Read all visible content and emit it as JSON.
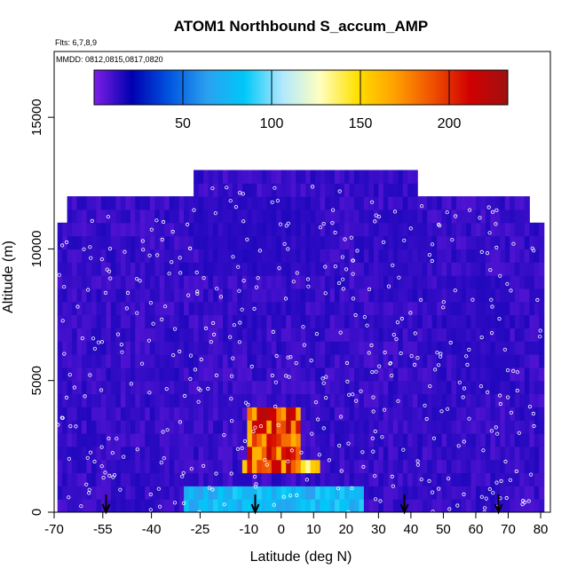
{
  "chart_data": {
    "type": "heatmap",
    "title": "ATOM1 Northbound S_accum_AMP",
    "flights_note": "Flts: 6,7,8,9",
    "dates_note": "MMDD: 0812,0815,0817,0820",
    "xlabel": "Latitude (deg N)",
    "ylabel": "Altitude (m)",
    "xlim": [
      -70,
      83
    ],
    "ylim": [
      0,
      17500
    ],
    "x_ticks": [
      -70,
      -55,
      -40,
      -25,
      -10,
      0,
      10,
      20,
      30,
      40,
      50,
      60,
      70,
      80
    ],
    "x_tick_labels": [
      "-70",
      "-55",
      "-40",
      "-25",
      "-10",
      "0",
      "10",
      "20",
      "30",
      "40",
      "50",
      "60",
      "70",
      "80"
    ],
    "y_ticks": [
      0,
      5000,
      10000,
      15000
    ],
    "y_tick_labels": [
      "0",
      "5000",
      "10000",
      "15000"
    ],
    "colorbar": {
      "range": [
        0,
        233
      ],
      "ticks": [
        50,
        100,
        150,
        200
      ],
      "tick_labels": [
        "50",
        "100",
        "150",
        "200"
      ],
      "colors": [
        "#7f1fe6",
        "#0000b0",
        "#0055e0",
        "#2aa0f0",
        "#00c8f8",
        "#b0e8ff",
        "#ffffc0",
        "#ffe000",
        "#ffa000",
        "#f05000",
        "#d00000",
        "#a01010"
      ]
    },
    "data_extent": {
      "lat_min": -69,
      "lat_max": 80,
      "alt_top_profile": [
        {
          "lat": -69,
          "alt": 11000
        },
        {
          "lat": -62,
          "alt": 11700
        },
        {
          "lat": -45,
          "alt": 11800
        },
        {
          "lat": -10,
          "alt": 12900
        },
        {
          "lat": 35,
          "alt": 12900
        },
        {
          "lat": 50,
          "alt": 12000
        },
        {
          "lat": 72,
          "alt": 12000
        },
        {
          "lat": 80,
          "alt": 11000
        }
      ]
    },
    "features": [
      {
        "lat_min": -10,
        "lat_max": 5,
        "alt_min": 1500,
        "alt_max": 4000,
        "value": 215
      },
      {
        "lat_min": -12,
        "lat_max": 12,
        "alt_min": 1500,
        "alt_max": 2000,
        "value": 160
      },
      {
        "lat_min": -30,
        "lat_max": 25,
        "alt_min": 0,
        "alt_max": 1000,
        "value": 85
      },
      {
        "lat_min": -25,
        "lat_max": 12,
        "alt_min": 9000,
        "alt_max": 12000,
        "value": 15
      },
      {
        "lat_min": 30,
        "lat_max": 45,
        "alt_min": 8000,
        "alt_max": 11500,
        "value": 15
      },
      {
        "lat_min": 55,
        "lat_max": 70,
        "alt_min": 4500,
        "alt_max": 9000,
        "value": 15
      }
    ],
    "sounding_arrows_lat": [
      -54,
      -8,
      38,
      67
    ]
  }
}
